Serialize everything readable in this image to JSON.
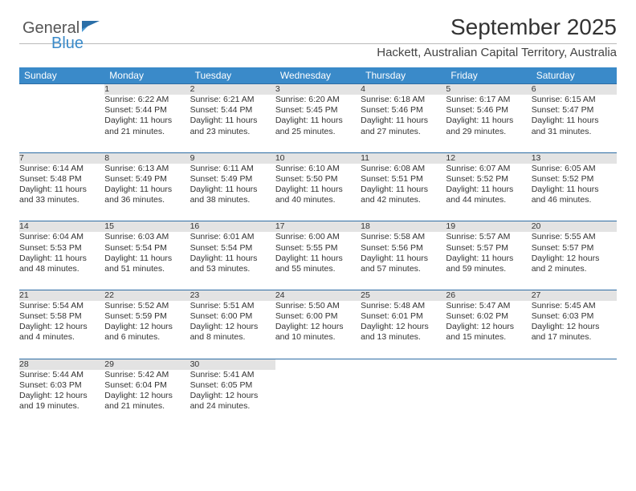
{
  "brand": {
    "part1": "General",
    "part2": "Blue"
  },
  "title": "September 2025",
  "subtitle": "Hackett, Australian Capital Territory, Australia",
  "colors": {
    "header_bg": "#3a8ac9",
    "daynum_bg": "#e3e3e3",
    "row_border": "#2e6da4",
    "text": "#333333",
    "background": "#ffffff"
  },
  "fonts": {
    "title_pt": 28,
    "subtitle_pt": 15,
    "header_pt": 12,
    "cell_pt": 10.5
  },
  "weekdays": [
    "Sunday",
    "Monday",
    "Tuesday",
    "Wednesday",
    "Thursday",
    "Friday",
    "Saturday"
  ],
  "weeks": [
    [
      null,
      {
        "n": "1",
        "sr": "Sunrise: 6:22 AM",
        "ss": "Sunset: 5:44 PM",
        "d1": "Daylight: 11 hours",
        "d2": "and 21 minutes."
      },
      {
        "n": "2",
        "sr": "Sunrise: 6:21 AM",
        "ss": "Sunset: 5:44 PM",
        "d1": "Daylight: 11 hours",
        "d2": "and 23 minutes."
      },
      {
        "n": "3",
        "sr": "Sunrise: 6:20 AM",
        "ss": "Sunset: 5:45 PM",
        "d1": "Daylight: 11 hours",
        "d2": "and 25 minutes."
      },
      {
        "n": "4",
        "sr": "Sunrise: 6:18 AM",
        "ss": "Sunset: 5:46 PM",
        "d1": "Daylight: 11 hours",
        "d2": "and 27 minutes."
      },
      {
        "n": "5",
        "sr": "Sunrise: 6:17 AM",
        "ss": "Sunset: 5:46 PM",
        "d1": "Daylight: 11 hours",
        "d2": "and 29 minutes."
      },
      {
        "n": "6",
        "sr": "Sunrise: 6:15 AM",
        "ss": "Sunset: 5:47 PM",
        "d1": "Daylight: 11 hours",
        "d2": "and 31 minutes."
      }
    ],
    [
      {
        "n": "7",
        "sr": "Sunrise: 6:14 AM",
        "ss": "Sunset: 5:48 PM",
        "d1": "Daylight: 11 hours",
        "d2": "and 33 minutes."
      },
      {
        "n": "8",
        "sr": "Sunrise: 6:13 AM",
        "ss": "Sunset: 5:49 PM",
        "d1": "Daylight: 11 hours",
        "d2": "and 36 minutes."
      },
      {
        "n": "9",
        "sr": "Sunrise: 6:11 AM",
        "ss": "Sunset: 5:49 PM",
        "d1": "Daylight: 11 hours",
        "d2": "and 38 minutes."
      },
      {
        "n": "10",
        "sr": "Sunrise: 6:10 AM",
        "ss": "Sunset: 5:50 PM",
        "d1": "Daylight: 11 hours",
        "d2": "and 40 minutes."
      },
      {
        "n": "11",
        "sr": "Sunrise: 6:08 AM",
        "ss": "Sunset: 5:51 PM",
        "d1": "Daylight: 11 hours",
        "d2": "and 42 minutes."
      },
      {
        "n": "12",
        "sr": "Sunrise: 6:07 AM",
        "ss": "Sunset: 5:52 PM",
        "d1": "Daylight: 11 hours",
        "d2": "and 44 minutes."
      },
      {
        "n": "13",
        "sr": "Sunrise: 6:05 AM",
        "ss": "Sunset: 5:52 PM",
        "d1": "Daylight: 11 hours",
        "d2": "and 46 minutes."
      }
    ],
    [
      {
        "n": "14",
        "sr": "Sunrise: 6:04 AM",
        "ss": "Sunset: 5:53 PM",
        "d1": "Daylight: 11 hours",
        "d2": "and 48 minutes."
      },
      {
        "n": "15",
        "sr": "Sunrise: 6:03 AM",
        "ss": "Sunset: 5:54 PM",
        "d1": "Daylight: 11 hours",
        "d2": "and 51 minutes."
      },
      {
        "n": "16",
        "sr": "Sunrise: 6:01 AM",
        "ss": "Sunset: 5:54 PM",
        "d1": "Daylight: 11 hours",
        "d2": "and 53 minutes."
      },
      {
        "n": "17",
        "sr": "Sunrise: 6:00 AM",
        "ss": "Sunset: 5:55 PM",
        "d1": "Daylight: 11 hours",
        "d2": "and 55 minutes."
      },
      {
        "n": "18",
        "sr": "Sunrise: 5:58 AM",
        "ss": "Sunset: 5:56 PM",
        "d1": "Daylight: 11 hours",
        "d2": "and 57 minutes."
      },
      {
        "n": "19",
        "sr": "Sunrise: 5:57 AM",
        "ss": "Sunset: 5:57 PM",
        "d1": "Daylight: 11 hours",
        "d2": "and 59 minutes."
      },
      {
        "n": "20",
        "sr": "Sunrise: 5:55 AM",
        "ss": "Sunset: 5:57 PM",
        "d1": "Daylight: 12 hours",
        "d2": "and 2 minutes."
      }
    ],
    [
      {
        "n": "21",
        "sr": "Sunrise: 5:54 AM",
        "ss": "Sunset: 5:58 PM",
        "d1": "Daylight: 12 hours",
        "d2": "and 4 minutes."
      },
      {
        "n": "22",
        "sr": "Sunrise: 5:52 AM",
        "ss": "Sunset: 5:59 PM",
        "d1": "Daylight: 12 hours",
        "d2": "and 6 minutes."
      },
      {
        "n": "23",
        "sr": "Sunrise: 5:51 AM",
        "ss": "Sunset: 6:00 PM",
        "d1": "Daylight: 12 hours",
        "d2": "and 8 minutes."
      },
      {
        "n": "24",
        "sr": "Sunrise: 5:50 AM",
        "ss": "Sunset: 6:00 PM",
        "d1": "Daylight: 12 hours",
        "d2": "and 10 minutes."
      },
      {
        "n": "25",
        "sr": "Sunrise: 5:48 AM",
        "ss": "Sunset: 6:01 PM",
        "d1": "Daylight: 12 hours",
        "d2": "and 13 minutes."
      },
      {
        "n": "26",
        "sr": "Sunrise: 5:47 AM",
        "ss": "Sunset: 6:02 PM",
        "d1": "Daylight: 12 hours",
        "d2": "and 15 minutes."
      },
      {
        "n": "27",
        "sr": "Sunrise: 5:45 AM",
        "ss": "Sunset: 6:03 PM",
        "d1": "Daylight: 12 hours",
        "d2": "and 17 minutes."
      }
    ],
    [
      {
        "n": "28",
        "sr": "Sunrise: 5:44 AM",
        "ss": "Sunset: 6:03 PM",
        "d1": "Daylight: 12 hours",
        "d2": "and 19 minutes."
      },
      {
        "n": "29",
        "sr": "Sunrise: 5:42 AM",
        "ss": "Sunset: 6:04 PM",
        "d1": "Daylight: 12 hours",
        "d2": "and 21 minutes."
      },
      {
        "n": "30",
        "sr": "Sunrise: 5:41 AM",
        "ss": "Sunset: 6:05 PM",
        "d1": "Daylight: 12 hours",
        "d2": "and 24 minutes."
      },
      null,
      null,
      null,
      null
    ]
  ]
}
